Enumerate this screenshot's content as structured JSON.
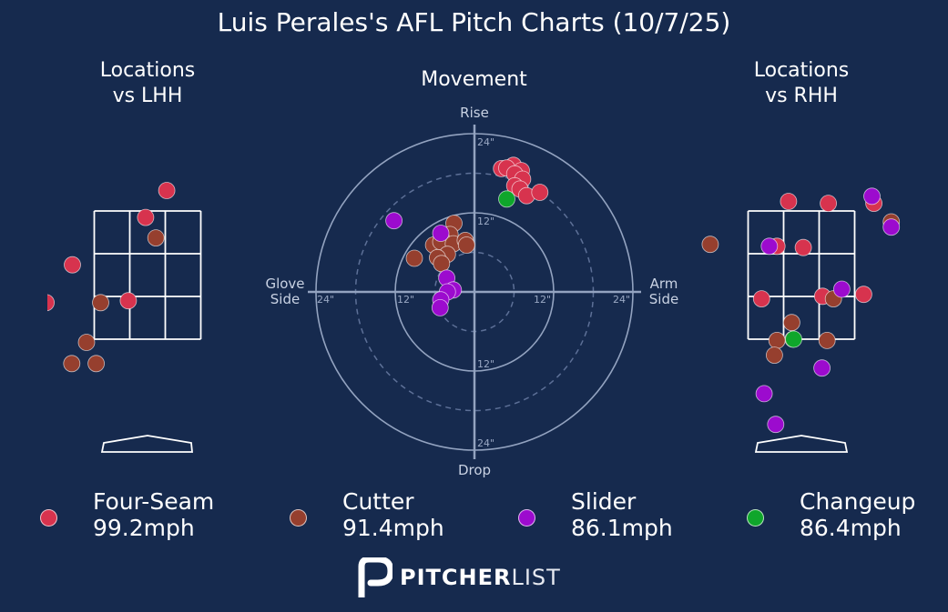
{
  "title": "Luis Perales's AFL Pitch Charts (10/7/25)",
  "panels": {
    "left_title_line1": "Locations",
    "left_title_line2": "vs LHH",
    "center_title": "Movement",
    "right_title_line1": "Locations",
    "right_title_line2": "vs RHH"
  },
  "movement_axes": {
    "top": "Rise",
    "bottom": "Drop",
    "left_line1": "Glove",
    "left_line2": "Side",
    "right_line1": "Arm",
    "right_line2": "Side",
    "ring_labels": [
      "12\"",
      "24\""
    ]
  },
  "colors": {
    "background": "#162a4e",
    "Four-Seam": "#d7334e",
    "Cutter": "#963f2e",
    "Slider": "#9c0bce",
    "Changeup": "#0fa62b"
  },
  "legend": [
    {
      "pitch": "Four-Seam",
      "speed": "99.2mph"
    },
    {
      "pitch": "Cutter",
      "speed": "91.4mph"
    },
    {
      "pitch": "Slider",
      "speed": "86.1mph"
    },
    {
      "pitch": "Changeup",
      "speed": "86.4mph"
    }
  ],
  "brand": {
    "bold": "PITCHER",
    "light": "LIST"
  },
  "chart_data": [
    {
      "type": "scatter",
      "name": "Movement",
      "x_unit": "inches (positive = arm side)",
      "y_unit": "inches (positive = rise)",
      "rings": [
        6,
        12,
        18,
        24
      ],
      "points": [
        {
          "pitch": "Four-Seam",
          "x": 4.1,
          "y": 18.7
        },
        {
          "pitch": "Four-Seam",
          "x": 5.9,
          "y": 19.2
        },
        {
          "pitch": "Four-Seam",
          "x": 7.1,
          "y": 18.4
        },
        {
          "pitch": "Four-Seam",
          "x": 4.9,
          "y": 18.8
        },
        {
          "pitch": "Four-Seam",
          "x": 6.1,
          "y": 17.9
        },
        {
          "pitch": "Four-Seam",
          "x": 7.3,
          "y": 17.1
        },
        {
          "pitch": "Four-Seam",
          "x": 6.1,
          "y": 16.1
        },
        {
          "pitch": "Four-Seam",
          "x": 6.9,
          "y": 15.6
        },
        {
          "pitch": "Four-Seam",
          "x": 7.9,
          "y": 14.6
        },
        {
          "pitch": "Four-Seam",
          "x": 9.9,
          "y": 15.1
        },
        {
          "pitch": "Changeup",
          "x": 4.9,
          "y": 14.1
        },
        {
          "pitch": "Cutter",
          "x": -3.1,
          "y": 10.4
        },
        {
          "pitch": "Cutter",
          "x": -3.7,
          "y": 8.7
        },
        {
          "pitch": "Cutter",
          "x": -5.0,
          "y": 8.1
        },
        {
          "pitch": "Cutter",
          "x": -6.2,
          "y": 7.1
        },
        {
          "pitch": "Cutter",
          "x": -5.1,
          "y": 7.6
        },
        {
          "pitch": "Cutter",
          "x": -3.2,
          "y": 7.3
        },
        {
          "pitch": "Cutter",
          "x": -1.4,
          "y": 7.8
        },
        {
          "pitch": "Cutter",
          "x": -1.2,
          "y": 7.1
        },
        {
          "pitch": "Cutter",
          "x": -4.1,
          "y": 5.7
        },
        {
          "pitch": "Cutter",
          "x": -9.1,
          "y": 5.1
        },
        {
          "pitch": "Cutter",
          "x": -5.6,
          "y": 5.2
        },
        {
          "pitch": "Cutter",
          "x": -5.0,
          "y": 4.3
        },
        {
          "pitch": "Slider",
          "x": -12.2,
          "y": 10.8
        },
        {
          "pitch": "Slider",
          "x": -5.1,
          "y": 8.9
        },
        {
          "pitch": "Slider",
          "x": -4.2,
          "y": 2.1
        },
        {
          "pitch": "Slider",
          "x": -3.2,
          "y": 0.3
        },
        {
          "pitch": "Slider",
          "x": -4.1,
          "y": 0.0
        },
        {
          "pitch": "Slider",
          "x": -5.1,
          "y": -1.2
        },
        {
          "pitch": "Slider",
          "x": -5.2,
          "y": -2.4
        }
      ]
    },
    {
      "type": "scatter",
      "name": "Locations vs LHH",
      "x_unit": "feet from plate center (catcher view)",
      "y_unit": "feet above ground",
      "strike_zone": {
        "x": [
          -0.83,
          0.83
        ],
        "y": [
          1.5,
          3.5
        ]
      },
      "points": [
        {
          "pitch": "Four-Seam",
          "x": 0.3,
          "y": 3.82
        },
        {
          "pitch": "Four-Seam",
          "x": -0.03,
          "y": 3.4
        },
        {
          "pitch": "Four-Seam",
          "x": -1.17,
          "y": 2.66
        },
        {
          "pitch": "Four-Seam",
          "x": -1.58,
          "y": 2.07
        },
        {
          "pitch": "Four-Seam",
          "x": -0.3,
          "y": 2.1
        },
        {
          "pitch": "Cutter",
          "x": 0.13,
          "y": 3.08
        },
        {
          "pitch": "Cutter",
          "x": -0.73,
          "y": 2.07
        },
        {
          "pitch": "Cutter",
          "x": -0.95,
          "y": 1.45
        },
        {
          "pitch": "Cutter",
          "x": -1.18,
          "y": 1.12
        },
        {
          "pitch": "Cutter",
          "x": -0.8,
          "y": 1.12
        }
      ]
    },
    {
      "type": "scatter",
      "name": "Locations vs RHH",
      "x_unit": "feet from plate center (catcher view)",
      "y_unit": "feet above ground",
      "strike_zone": {
        "x": [
          -0.83,
          0.83
        ],
        "y": [
          1.5,
          3.5
        ]
      },
      "points": [
        {
          "pitch": "Four-Seam",
          "x": -0.2,
          "y": 3.65
        },
        {
          "pitch": "Four-Seam",
          "x": 0.42,
          "y": 3.62
        },
        {
          "pitch": "Four-Seam",
          "x": 1.13,
          "y": 3.62
        },
        {
          "pitch": "Four-Seam",
          "x": -0.38,
          "y": 2.95
        },
        {
          "pitch": "Four-Seam",
          "x": 0.03,
          "y": 2.93
        },
        {
          "pitch": "Four-Seam",
          "x": -0.62,
          "y": 2.13
        },
        {
          "pitch": "Four-Seam",
          "x": 0.97,
          "y": 2.2
        },
        {
          "pitch": "Four-Seam",
          "x": 0.33,
          "y": 2.17
        },
        {
          "pitch": "Cutter",
          "x": -1.42,
          "y": 2.98
        },
        {
          "pitch": "Cutter",
          "x": 1.4,
          "y": 3.33
        },
        {
          "pitch": "Cutter",
          "x": -0.15,
          "y": 1.76
        },
        {
          "pitch": "Cutter",
          "x": 0.5,
          "y": 2.13
        },
        {
          "pitch": "Cutter",
          "x": -0.13,
          "y": 1.5
        },
        {
          "pitch": "Cutter",
          "x": -0.38,
          "y": 1.48
        },
        {
          "pitch": "Cutter",
          "x": 0.4,
          "y": 1.48
        },
        {
          "pitch": "Cutter",
          "x": -0.42,
          "y": 1.25
        },
        {
          "pitch": "Slider",
          "x": 1.1,
          "y": 3.73
        },
        {
          "pitch": "Slider",
          "x": 1.4,
          "y": 3.25
        },
        {
          "pitch": "Slider",
          "x": 0.63,
          "y": 2.28
        },
        {
          "pitch": "Slider",
          "x": -0.5,
          "y": 2.95
        },
        {
          "pitch": "Slider",
          "x": 0.32,
          "y": 1.05
        },
        {
          "pitch": "Slider",
          "x": -0.58,
          "y": 0.65
        },
        {
          "pitch": "Slider",
          "x": -0.4,
          "y": 0.17
        },
        {
          "pitch": "Changeup",
          "x": -0.12,
          "y": 1.5
        }
      ]
    }
  ]
}
